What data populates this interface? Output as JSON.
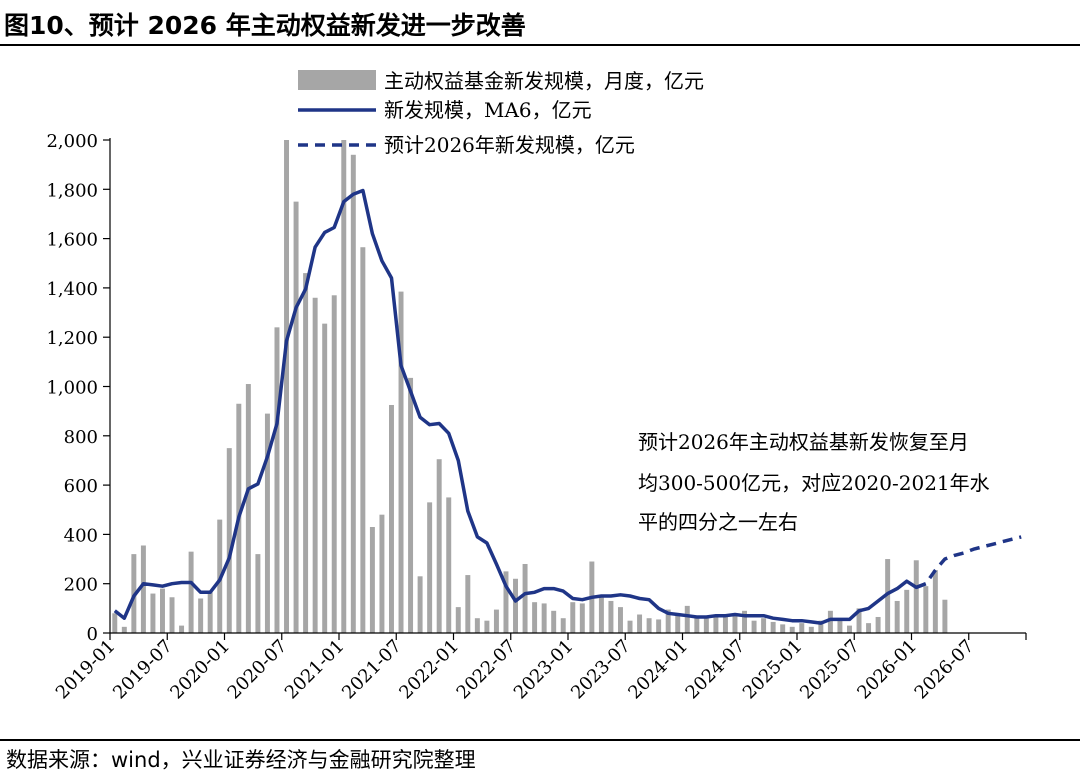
{
  "title": "图10、预计 2026 年主动权益新发进一步改善",
  "source": "数据来源：wind，兴业证券经济与金融研究院整理",
  "chart_data": {
    "type": "bar+line",
    "ylim": [
      0,
      2000
    ],
    "yticks": [
      0,
      200,
      400,
      600,
      800,
      1000,
      1200,
      1400,
      1600,
      1800,
      2000
    ],
    "ytick_labels": [
      "0",
      "200",
      "400",
      "600",
      "800",
      "1,000",
      "1,200",
      "1,400",
      "1,600",
      "1,800",
      "2,000"
    ],
    "x_start": "2019-01",
    "x_end": "2026-12",
    "xtick_labels": [
      "2019-01",
      "2019-07",
      "2020-01",
      "2020-07",
      "2021-01",
      "2021-07",
      "2022-01",
      "2022-07",
      "2023-01",
      "2023-07",
      "2024-01",
      "2024-07",
      "2025-01",
      "2025-07",
      "2026-01",
      "2026-07"
    ],
    "legend": [
      {
        "label": "主动权益基金新发规模，月度，亿元",
        "style": "bar"
      },
      {
        "label": "新发规模，MA6，亿元",
        "style": "solid-line"
      },
      {
        "label": "预计2026年新发规模，亿元",
        "style": "dashed-line"
      }
    ],
    "annotation": [
      "预计2026年主动权益基新发恢复至月",
      "均300-500亿元，对应2020-2021年水",
      "平的四分之一左右"
    ],
    "series": [
      {
        "name": "主动权益基金新发规模，月度，亿元",
        "color": "#a6a6a6",
        "values": [
          80,
          25,
          320,
          355,
          160,
          180,
          145,
          30,
          330,
          140,
          165,
          460,
          750,
          930,
          1010,
          320,
          890,
          1240,
          2000,
          1750,
          1460,
          1360,
          1255,
          1370,
          2000,
          1940,
          1565,
          430,
          480,
          925,
          1385,
          1035,
          230,
          530,
          705,
          550,
          105,
          235,
          60,
          50,
          95,
          250,
          220,
          280,
          125,
          120,
          90,
          60,
          125,
          120,
          290,
          145,
          130,
          105,
          50,
          75,
          60,
          55,
          95,
          80,
          110,
          60,
          65,
          70,
          75,
          80,
          90,
          50,
          60,
          45,
          35,
          25,
          40,
          25,
          50,
          90,
          55,
          30,
          100,
          40,
          65,
          300,
          130,
          175,
          295,
          190,
          255,
          135
        ]
      },
      {
        "name": "新发规模，MA6，亿元",
        "color": "#1f3587",
        "values": [
          90,
          60,
          150,
          200,
          195,
          190,
          200,
          205,
          205,
          165,
          165,
          215,
          305,
          470,
          585,
          605,
          715,
          850,
          1185,
          1320,
          1395,
          1565,
          1625,
          1645,
          1750,
          1780,
          1795,
          1620,
          1510,
          1440,
          1085,
          980,
          875,
          845,
          850,
          810,
          700,
          495,
          390,
          365,
          280,
          190,
          130,
          160,
          165,
          180,
          180,
          170,
          140,
          135,
          145,
          150,
          150,
          155,
          150,
          140,
          135,
          100,
          80,
          75,
          70,
          65,
          65,
          70,
          70,
          75,
          70,
          70,
          70,
          60,
          55,
          50,
          50,
          45,
          40,
          55,
          55,
          55,
          90,
          100,
          130,
          160,
          180,
          210,
          185,
          200
        ]
      },
      {
        "name": "预计2026年新发规模，亿元",
        "color": "#1f3587",
        "start_index": 84,
        "values": [
          185,
          200,
          255,
          300,
          315,
          325,
          340,
          350,
          360,
          370,
          380,
          390
        ]
      }
    ]
  }
}
